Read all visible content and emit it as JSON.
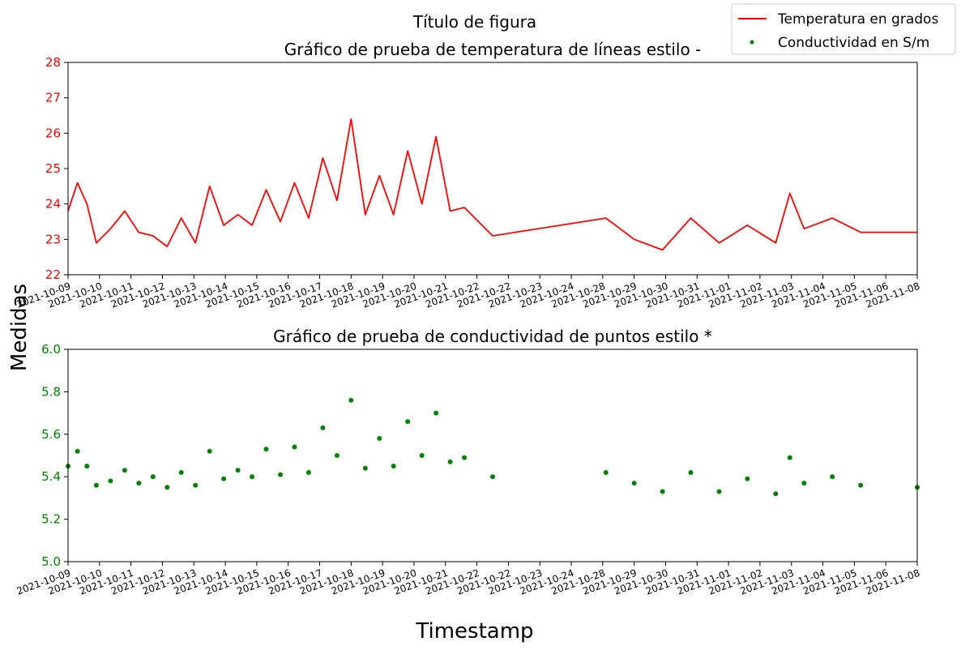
{
  "figure": {
    "suptitle": "Título de figura",
    "ylabel": "Medidas",
    "xlabel": "Timestamp"
  },
  "legend": {
    "placement": "top-right",
    "entries": [
      {
        "label": "Temperatura en grados",
        "color": "#ff0000",
        "marker": "line"
      },
      {
        "label": "Conductividad en S/m",
        "color": "#008000",
        "marker": "dot"
      }
    ]
  },
  "chart_data": [
    {
      "type": "line",
      "title": "Gráfico de prueba de temperatura de líneas estilo -",
      "series_name": "Temperatura en grados",
      "color": "#ff0000",
      "tick_color": "#ff0000",
      "ylim": [
        22,
        28
      ],
      "yticks": [
        22,
        23,
        24,
        25,
        26,
        27,
        28
      ],
      "xlim": [
        "2021-10-09",
        "2021-11-08"
      ],
      "xtick_labels": [
        "2021-10-09",
        "2021-10-10",
        "2021-10-11",
        "2021-10-12",
        "2021-10-13",
        "2021-10-14",
        "2021-10-15",
        "2021-10-16",
        "2021-10-17",
        "2021-10-18",
        "2021-10-19",
        "2021-10-20",
        "2021-10-21",
        "2021-10-22",
        "2021-10-22",
        "2021-10-23",
        "2021-10-24",
        "2021-10-28",
        "2021-10-29",
        "2021-10-30",
        "2021-10-31",
        "2021-11-01",
        "2021-11-02",
        "2021-11-03",
        "2021-11-04",
        "2021-11-05",
        "2021-11-06",
        "2021-11-08"
      ],
      "x": [
        "2021-10-09",
        "2021-10-09",
        "2021-10-09",
        "2021-10-10",
        "2021-10-10",
        "2021-10-11",
        "2021-10-11",
        "2021-10-12",
        "2021-10-12",
        "2021-10-13",
        "2021-10-13",
        "2021-10-14",
        "2021-10-14",
        "2021-10-15",
        "2021-10-15",
        "2021-10-16",
        "2021-10-16",
        "2021-10-17",
        "2021-10-17",
        "2021-10-18",
        "2021-10-18",
        "2021-10-19",
        "2021-10-19",
        "2021-10-20",
        "2021-10-20",
        "2021-10-21",
        "2021-10-21",
        "2021-10-22",
        "2021-10-22",
        "2021-10-23",
        "2021-10-24",
        "2021-10-28",
        "2021-10-29",
        "2021-10-30",
        "2021-10-31",
        "2021-11-01",
        "2021-11-02",
        "2021-11-03",
        "2021-11-03",
        "2021-11-04",
        "2021-11-05",
        "2021-11-06",
        "2021-11-08"
      ],
      "y": [
        23.8,
        24.6,
        24.0,
        22.9,
        23.3,
        23.8,
        23.2,
        23.1,
        22.8,
        23.6,
        22.9,
        24.5,
        23.4,
        23.7,
        23.4,
        24.4,
        23.5,
        24.6,
        23.6,
        25.3,
        24.1,
        26.4,
        23.7,
        24.8,
        23.7,
        25.5,
        24.0,
        25.9,
        23.8,
        23.9,
        23.1,
        23.6,
        23.0,
        22.7,
        23.6,
        22.9,
        23.4,
        22.9,
        24.3,
        23.3,
        23.6,
        23.2,
        23.2
      ]
    },
    {
      "type": "scatter",
      "title": "Gráfico de prueba de conductividad de puntos estilo *",
      "series_name": "Conductividad en S/m",
      "color": "#008000",
      "tick_color": "#008000",
      "ylim": [
        5.0,
        6.0
      ],
      "yticks": [
        5.0,
        5.2,
        5.4,
        5.6,
        5.8,
        6.0
      ],
      "xlim": [
        "2021-10-09",
        "2021-11-08"
      ],
      "xtick_labels": [
        "2021-10-09",
        "2021-10-10",
        "2021-10-11",
        "2021-10-12",
        "2021-10-13",
        "2021-10-14",
        "2021-10-15",
        "2021-10-16",
        "2021-10-17",
        "2021-10-18",
        "2021-10-19",
        "2021-10-20",
        "2021-10-21",
        "2021-10-22",
        "2021-10-22",
        "2021-10-23",
        "2021-10-24",
        "2021-10-28",
        "2021-10-29",
        "2021-10-30",
        "2021-10-31",
        "2021-11-01",
        "2021-11-02",
        "2021-11-03",
        "2021-11-04",
        "2021-11-05",
        "2021-11-06",
        "2021-11-08"
      ],
      "x": [
        "2021-10-09",
        "2021-10-09",
        "2021-10-09",
        "2021-10-10",
        "2021-10-10",
        "2021-10-11",
        "2021-10-11",
        "2021-10-12",
        "2021-10-12",
        "2021-10-13",
        "2021-10-13",
        "2021-10-14",
        "2021-10-14",
        "2021-10-15",
        "2021-10-15",
        "2021-10-16",
        "2021-10-16",
        "2021-10-17",
        "2021-10-17",
        "2021-10-18",
        "2021-10-18",
        "2021-10-19",
        "2021-10-19",
        "2021-10-20",
        "2021-10-20",
        "2021-10-21",
        "2021-10-21",
        "2021-10-22",
        "2021-10-22",
        "2021-10-23",
        "2021-10-24",
        "2021-10-28",
        "2021-10-29",
        "2021-10-30",
        "2021-10-31",
        "2021-11-01",
        "2021-11-02",
        "2021-11-03",
        "2021-11-03",
        "2021-11-04",
        "2021-11-05",
        "2021-11-06",
        "2021-11-08"
      ],
      "y": [
        5.45,
        5.52,
        5.45,
        5.36,
        5.38,
        5.43,
        5.37,
        5.4,
        5.35,
        5.42,
        5.36,
        5.52,
        5.39,
        5.43,
        5.4,
        5.53,
        5.41,
        5.54,
        5.42,
        5.63,
        5.5,
        5.76,
        5.44,
        5.58,
        5.45,
        5.66,
        5.5,
        5.7,
        5.47,
        5.49,
        5.4,
        5.42,
        5.37,
        5.33,
        5.42,
        5.33,
        5.39,
        5.32,
        5.49,
        5.37,
        5.4,
        5.36,
        5.35
      ]
    }
  ]
}
